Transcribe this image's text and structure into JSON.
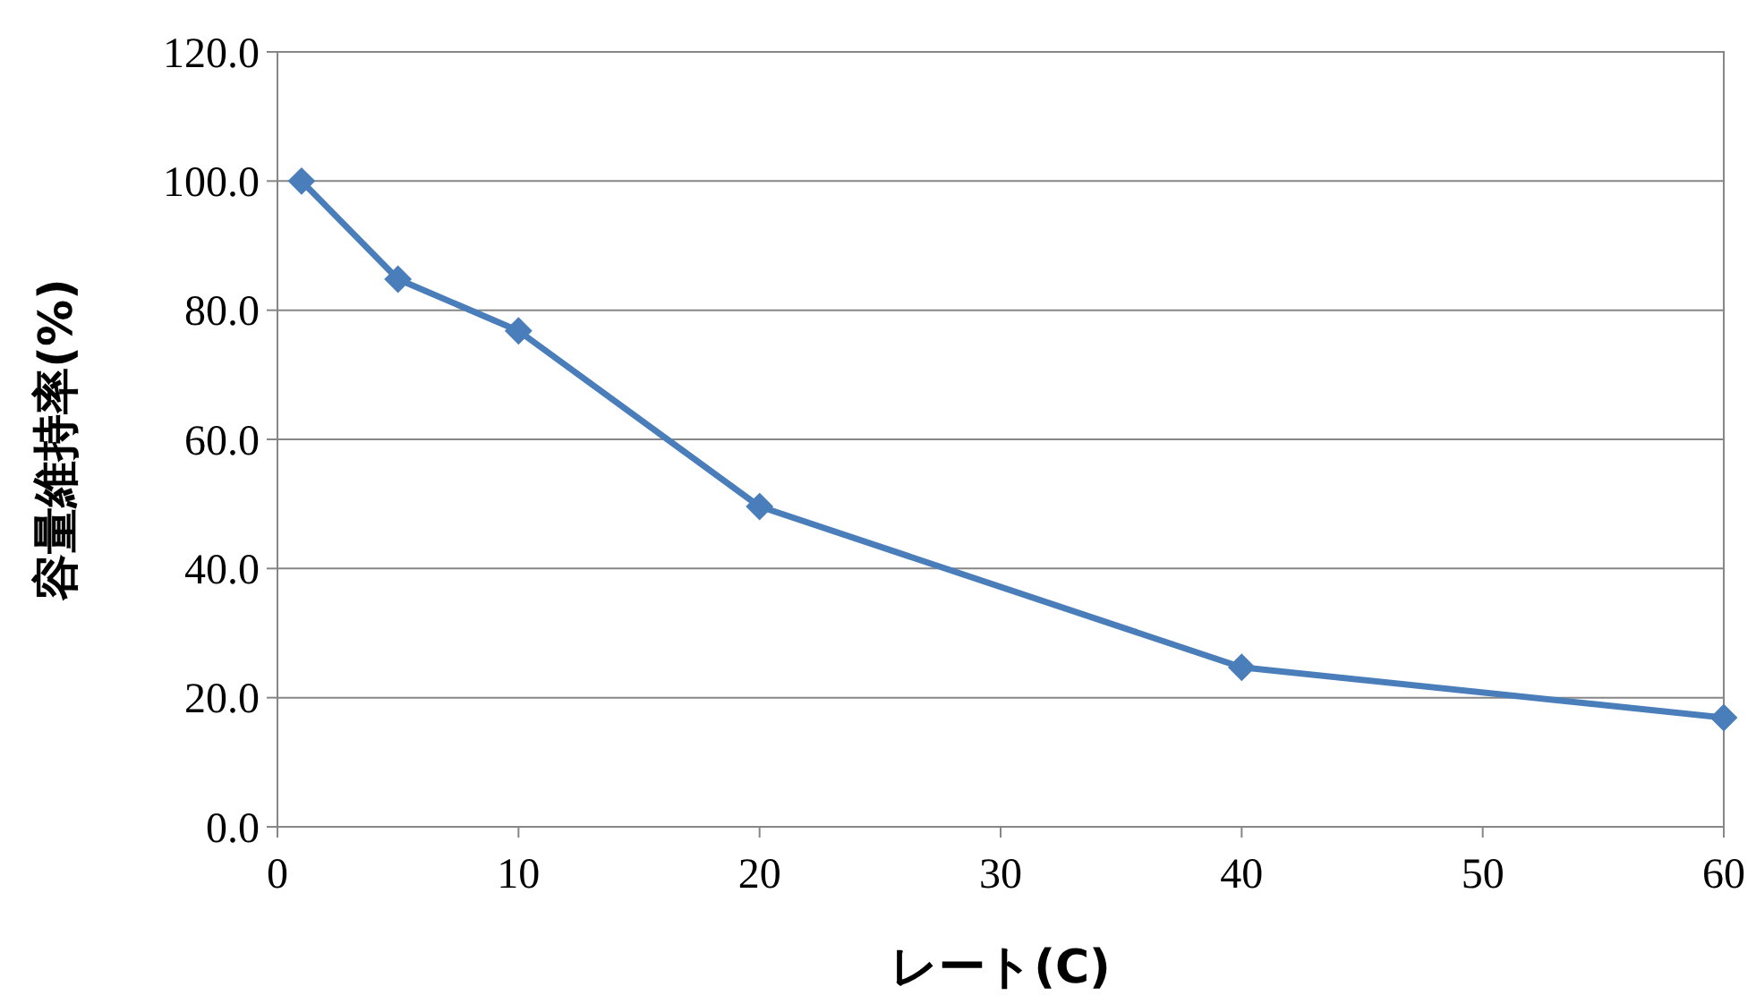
{
  "chart_data": {
    "type": "line",
    "xlabel": "レート(C)",
    "ylabel": "容量維持率(%)",
    "x": [
      1,
      5,
      10,
      20,
      40,
      60
    ],
    "series": [
      {
        "color": "#4a7ebb",
        "values": [
          100,
          84.8,
          76.8,
          49.6,
          24.7,
          16.9
        ]
      }
    ],
    "xlim": [
      0,
      60
    ],
    "xticks": [
      0,
      10,
      20,
      30,
      40,
      50,
      60
    ],
    "ylim": [
      0,
      120
    ],
    "yticks": [
      {
        "value": 0,
        "label": "0.0"
      },
      {
        "value": 20,
        "label": "20.0"
      },
      {
        "value": 40,
        "label": "40.0"
      },
      {
        "value": 60,
        "label": "60.0"
      },
      {
        "value": 80,
        "label": "80.0"
      },
      {
        "value": 100,
        "label": "100.0"
      },
      {
        "value": 120,
        "label": "120.0"
      }
    ],
    "grid": "y",
    "marker": "diamond",
    "line_style": "solid"
  }
}
